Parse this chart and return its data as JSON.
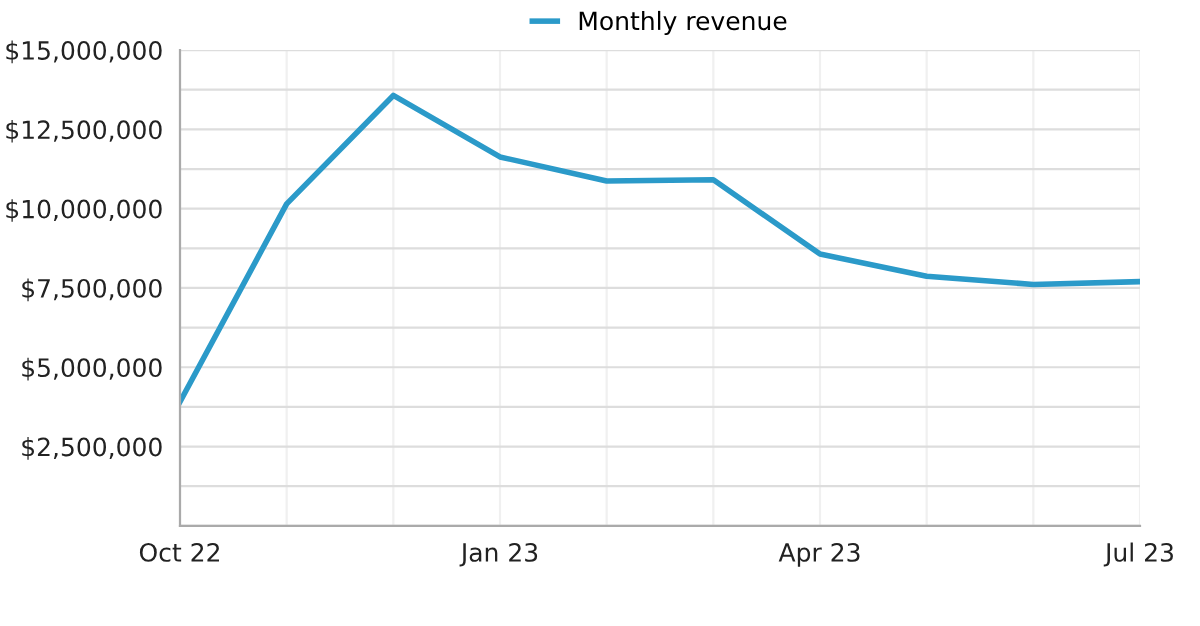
{
  "chart_data": {
    "type": "line",
    "categories": [
      "Oct 22",
      null,
      null,
      "Jan 23",
      null,
      null,
      "Apr 23",
      null,
      null,
      "Jul 23"
    ],
    "series": [
      {
        "name": "Monthly revenue",
        "color": "#2b9ac9",
        "values": [
          3910000,
          10150000,
          13570000,
          11630000,
          10870000,
          10910000,
          8570000,
          7870000,
          7610000,
          7700000
        ]
      }
    ],
    "ylim": [
      0,
      15000000
    ],
    "yticks": [
      {
        "value": 0,
        "label": null
      },
      {
        "value": 1250000,
        "label": null
      },
      {
        "value": 2500000,
        "label": "$2,500,000"
      },
      {
        "value": 3750000,
        "label": null
      },
      {
        "value": 5000000,
        "label": "$5,000,000"
      },
      {
        "value": 6250000,
        "label": null
      },
      {
        "value": 7500000,
        "label": "$7,500,000"
      },
      {
        "value": 8750000,
        "label": null
      },
      {
        "value": 10000000,
        "label": "$10,000,000"
      },
      {
        "value": 11250000,
        "label": null
      },
      {
        "value": 12500000,
        "label": "$12,500,000"
      },
      {
        "value": 13750000,
        "label": null
      },
      {
        "value": 15000000,
        "label": "$15,000,000"
      }
    ],
    "grid": true,
    "legend": "top",
    "marker": "none",
    "line_style": "solid"
  }
}
